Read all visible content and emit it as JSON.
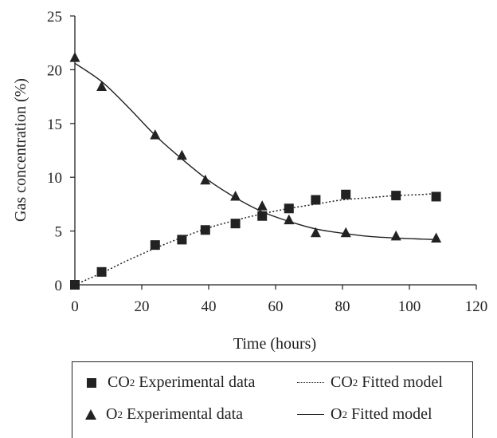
{
  "chart_data": {
    "type": "line",
    "xlabel": "Time (hours)",
    "ylabel": "Gas concentration (%)",
    "xlim": [
      0,
      120
    ],
    "ylim": [
      0,
      25
    ],
    "x_ticks": [
      "0",
      "20",
      "40",
      "60",
      "80",
      "100",
      "120"
    ],
    "y_ticks": [
      "0",
      "5",
      "10",
      "15",
      "20",
      "25"
    ],
    "grid": false,
    "legend_position": "bottom",
    "series": [
      {
        "kind": "scatter",
        "marker": "square",
        "x": [
          0,
          8,
          24,
          32,
          39,
          48,
          56,
          64,
          72,
          81,
          96,
          108
        ],
        "y": [
          0,
          1.2,
          3.7,
          4.2,
          5.1,
          5.7,
          6.4,
          7.1,
          7.9,
          8.4,
          8.3,
          8.2
        ]
      },
      {
        "kind": "line",
        "style": "dotted",
        "x": [
          0,
          8,
          16,
          24,
          32,
          40,
          48,
          56,
          64,
          72,
          80,
          88,
          96,
          104,
          108
        ],
        "y": [
          0,
          1.1,
          2.3,
          3.4,
          4.4,
          5.3,
          6.0,
          6.6,
          7.1,
          7.5,
          7.9,
          8.1,
          8.3,
          8.4,
          8.5
        ]
      },
      {
        "kind": "scatter",
        "marker": "triangle",
        "x": [
          0,
          8,
          24,
          32,
          39,
          48,
          56,
          64,
          72,
          81,
          96,
          108
        ],
        "y": [
          21.1,
          18.4,
          13.9,
          12.0,
          9.7,
          8.2,
          7.3,
          6.0,
          4.8,
          4.8,
          4.5,
          4.3
        ]
      },
      {
        "kind": "line",
        "style": "solid",
        "x": [
          0,
          8,
          16,
          24,
          32,
          40,
          48,
          56,
          64,
          72,
          80,
          88,
          96,
          104,
          108
        ],
        "y": [
          20.6,
          18.9,
          16.5,
          13.9,
          11.7,
          9.7,
          8.1,
          6.8,
          5.9,
          5.2,
          4.8,
          4.5,
          4.35,
          4.25,
          4.2
        ]
      }
    ]
  },
  "legend": {
    "co2_data": "CO",
    "co2_data_rest": "Experimental data",
    "co2_model": "CO",
    "co2_model_rest": "Fitted model",
    "o2_data": "O",
    "o2_data_rest": "Experimental data",
    "o2_model": "O",
    "o2_model_rest": "Fitted model",
    "sub_co2": "2",
    "sub_o2": "2"
  }
}
